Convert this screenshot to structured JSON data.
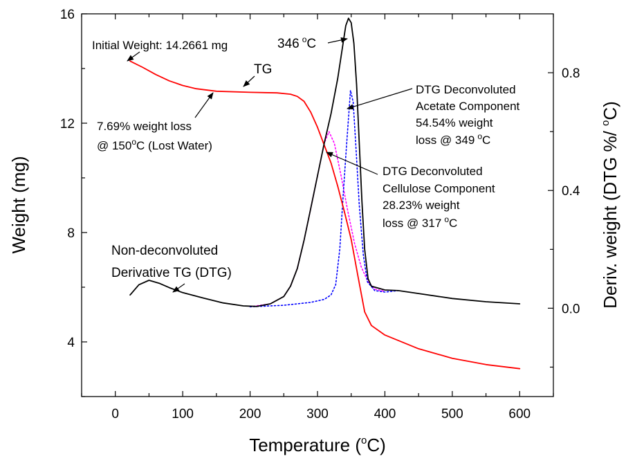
{
  "chart_data": {
    "type": "line",
    "xlabel": "Temperature (",
    "xlabel_sup": "o",
    "xlabel_end": "C)",
    "ylabel": "Weight (mg)",
    "y2label": "Deriv. weight (DTG %/ ",
    "y2label_sup": "o",
    "y2label_end": "C)",
    "xlim": [
      -50,
      650
    ],
    "ylim": [
      2,
      16
    ],
    "y2lim": [
      -0.3,
      1.0
    ],
    "x_ticks": [
      0,
      100,
      200,
      300,
      400,
      500,
      600
    ],
    "x_tick_labels": [
      "0",
      "100",
      "200",
      "300",
      "400",
      "500",
      "600"
    ],
    "y_ticks": [
      4,
      8,
      12,
      16
    ],
    "y_tick_labels": [
      "4",
      "8",
      "12",
      "16"
    ],
    "y2_ticks": [
      0.0,
      0.4,
      0.8
    ],
    "y2_tick_labels": [
      "0.0",
      "0.4",
      "0.8"
    ],
    "series": [
      {
        "name": "TG",
        "axis": "left",
        "color": "#ff0000",
        "style": "solid",
        "points": [
          [
            22,
            14.27
          ],
          [
            40,
            14.05
          ],
          [
            60,
            13.78
          ],
          [
            80,
            13.55
          ],
          [
            100,
            13.38
          ],
          [
            120,
            13.26
          ],
          [
            150,
            13.17
          ],
          [
            200,
            13.13
          ],
          [
            240,
            13.11
          ],
          [
            260,
            13.06
          ],
          [
            270,
            12.98
          ],
          [
            280,
            12.8
          ],
          [
            290,
            12.4
          ],
          [
            300,
            11.85
          ],
          [
            310,
            11.2
          ],
          [
            320,
            10.55
          ],
          [
            330,
            9.7
          ],
          [
            340,
            8.75
          ],
          [
            350,
            7.75
          ],
          [
            360,
            6.4
          ],
          [
            370,
            5.1
          ],
          [
            380,
            4.6
          ],
          [
            400,
            4.25
          ],
          [
            450,
            3.75
          ],
          [
            500,
            3.4
          ],
          [
            550,
            3.17
          ],
          [
            600,
            3.02
          ]
        ]
      },
      {
        "name": "DTG",
        "axis": "right",
        "color": "#000000",
        "style": "solid",
        "points": [
          [
            22,
            0.045
          ],
          [
            35,
            0.08
          ],
          [
            50,
            0.095
          ],
          [
            65,
            0.085
          ],
          [
            80,
            0.07
          ],
          [
            100,
            0.053
          ],
          [
            130,
            0.035
          ],
          [
            160,
            0.018
          ],
          [
            190,
            0.008
          ],
          [
            210,
            0.006
          ],
          [
            230,
            0.015
          ],
          [
            250,
            0.04
          ],
          [
            260,
            0.075
          ],
          [
            270,
            0.135
          ],
          [
            280,
            0.23
          ],
          [
            290,
            0.34
          ],
          [
            300,
            0.45
          ],
          [
            310,
            0.56
          ],
          [
            320,
            0.66
          ],
          [
            330,
            0.78
          ],
          [
            338,
            0.9
          ],
          [
            342,
            0.96
          ],
          [
            346,
            0.985
          ],
          [
            350,
            0.97
          ],
          [
            354,
            0.9
          ],
          [
            358,
            0.76
          ],
          [
            362,
            0.56
          ],
          [
            366,
            0.36
          ],
          [
            370,
            0.2
          ],
          [
            375,
            0.1
          ],
          [
            380,
            0.075
          ],
          [
            400,
            0.062
          ],
          [
            420,
            0.06
          ],
          [
            450,
            0.05
          ],
          [
            500,
            0.033
          ],
          [
            550,
            0.022
          ],
          [
            600,
            0.015
          ]
        ]
      },
      {
        "name": "DTG Deconvoluted Cellulose Component",
        "axis": "right",
        "color": "#ff00ff",
        "style": "dotted",
        "points": [
          [
            200,
            0.005
          ],
          [
            230,
            0.015
          ],
          [
            250,
            0.04
          ],
          [
            260,
            0.075
          ],
          [
            270,
            0.135
          ],
          [
            280,
            0.23
          ],
          [
            290,
            0.34
          ],
          [
            300,
            0.45
          ],
          [
            310,
            0.56
          ],
          [
            317,
            0.6
          ],
          [
            325,
            0.56
          ],
          [
            335,
            0.45
          ],
          [
            345,
            0.33
          ],
          [
            355,
            0.22
          ],
          [
            365,
            0.14
          ],
          [
            375,
            0.09
          ],
          [
            385,
            0.065
          ],
          [
            400,
            0.057
          ]
        ]
      },
      {
        "name": "DTG Deconvoluted Acetate Component",
        "axis": "right",
        "color": "#0000ff",
        "style": "dotted",
        "points": [
          [
            200,
            0.005
          ],
          [
            250,
            0.01
          ],
          [
            290,
            0.02
          ],
          [
            310,
            0.03
          ],
          [
            320,
            0.045
          ],
          [
            327,
            0.08
          ],
          [
            333,
            0.2
          ],
          [
            338,
            0.38
          ],
          [
            343,
            0.55
          ],
          [
            349,
            0.74
          ],
          [
            353,
            0.7
          ],
          [
            357,
            0.55
          ],
          [
            362,
            0.35
          ],
          [
            368,
            0.18
          ],
          [
            374,
            0.09
          ],
          [
            385,
            0.06
          ],
          [
            400,
            0.055
          ],
          [
            420,
            0.06
          ]
        ]
      }
    ],
    "annotations": {
      "initial_weight": "Initial Weight: 14.2661 mg",
      "peak": "346",
      "peak_unit": "C",
      "tg_label": "TG",
      "water_loss_1": "7.69% weight loss",
      "water_loss_2a": "@ 150",
      "water_loss_2b": "C (Lost Water)",
      "acetate_1": "DTG Deconvoluted",
      "acetate_2": "Acetate Component",
      "acetate_3": "54.54% weight",
      "acetate_4a": "loss @ 349",
      "acetate_4b": "C",
      "cellulose_1": "DTG Deconvoluted",
      "cellulose_2": "Cellulose Component",
      "cellulose_3": "28.23% weight",
      "cellulose_4a": "loss @ 317",
      "cellulose_4b": "C",
      "dtg_label_1": "Non-deconvoluted",
      "dtg_label_2": "Derivative TG (DTG)",
      "degree_mark": "o"
    }
  }
}
